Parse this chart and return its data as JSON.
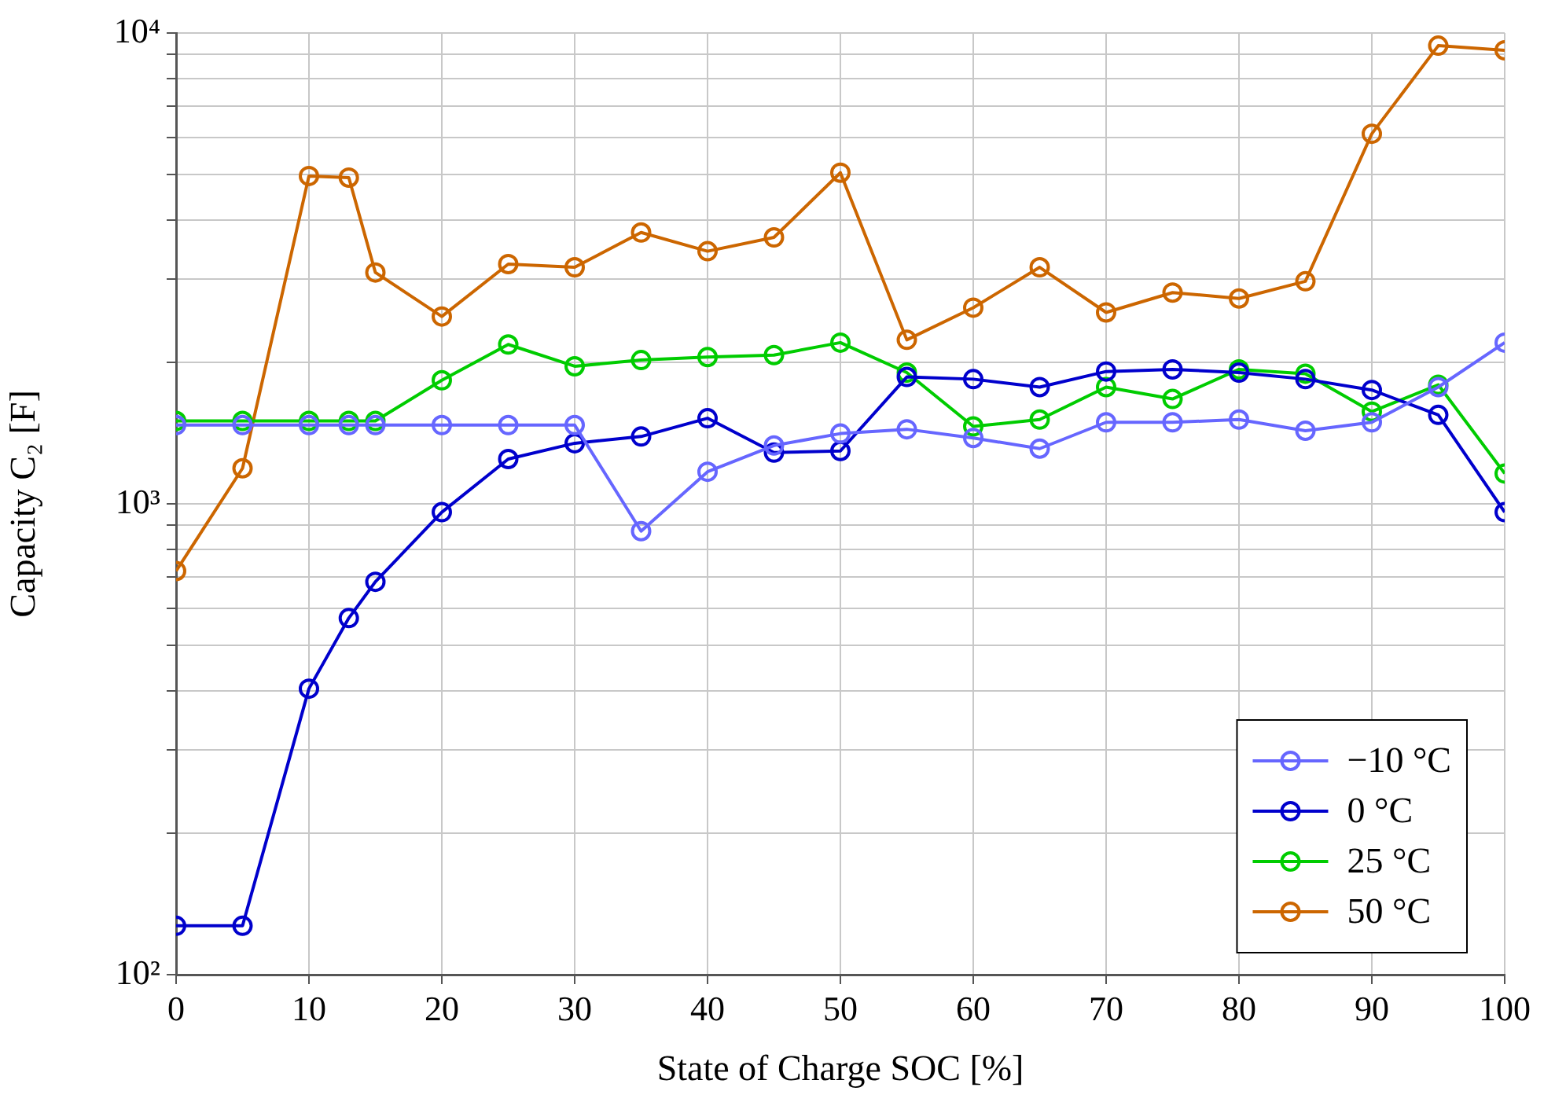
{
  "chart_data": {
    "type": "line",
    "xlabel": "State of Charge SOC [%]",
    "ylabel": "Capacity C₂ [F]",
    "x": [
      0,
      5,
      10,
      13,
      15,
      20,
      25,
      30,
      35,
      40,
      45,
      50,
      55,
      60,
      65,
      70,
      75,
      80,
      85,
      90,
      95,
      100
    ],
    "series": [
      {
        "name": "−10 °C",
        "color": "#6666ff",
        "values": [
          1470,
          1470,
          1470,
          1470,
          1470,
          1470,
          1470,
          1470,
          875,
          1170,
          1330,
          1410,
          1440,
          1380,
          1310,
          1490,
          1490,
          1510,
          1430,
          1490,
          1770,
          2200
        ]
      },
      {
        "name": "0 °C",
        "color": "#0000cc",
        "values": [
          127,
          127,
          405,
          572,
          683,
          960,
          1245,
          1345,
          1390,
          1520,
          1285,
          1295,
          1860,
          1840,
          1770,
          1910,
          1930,
          1900,
          1840,
          1745,
          1545,
          960
        ]
      },
      {
        "name": "25 °C",
        "color": "#00cc00",
        "values": [
          1500,
          1500,
          1500,
          1500,
          1500,
          1830,
          2180,
          1960,
          2020,
          2050,
          2070,
          2200,
          1900,
          1460,
          1510,
          1770,
          1670,
          1930,
          1890,
          1570,
          1790,
          1160
        ]
      },
      {
        "name": "50 °C",
        "color": "#cc6600",
        "values": [
          720,
          1190,
          4970,
          4930,
          3100,
          2500,
          3230,
          3180,
          3770,
          3440,
          3680,
          5050,
          2230,
          2610,
          3180,
          2550,
          2810,
          2730,
          2970,
          6110,
          9400,
          9190
        ]
      }
    ],
    "xlim": [
      0,
      100
    ],
    "xticks": [
      0,
      10,
      20,
      30,
      40,
      50,
      60,
      70,
      80,
      90,
      100
    ],
    "ylim": [
      100,
      10000
    ],
    "log": "y",
    "yticks": [
      {
        "value": 100,
        "label": "10²"
      },
      {
        "value": 200,
        "label": null
      },
      {
        "value": 300,
        "label": null
      },
      {
        "value": 400,
        "label": null
      },
      {
        "value": 500,
        "label": null
      },
      {
        "value": 600,
        "label": null
      },
      {
        "value": 700,
        "label": null
      },
      {
        "value": 800,
        "label": null
      },
      {
        "value": 900,
        "label": null
      },
      {
        "value": 1000,
        "label": "10³"
      },
      {
        "value": 2000,
        "label": null
      },
      {
        "value": 3000,
        "label": null
      },
      {
        "value": 4000,
        "label": null
      },
      {
        "value": 5000,
        "label": null
      },
      {
        "value": 6000,
        "label": null
      },
      {
        "value": 7000,
        "label": null
      },
      {
        "value": 8000,
        "label": null
      },
      {
        "value": 9000,
        "label": null
      },
      {
        "value": 10000,
        "label": "10⁴"
      }
    ],
    "grid": true,
    "legend": "bottom right",
    "marker": "circle",
    "line_style": "solid"
  }
}
